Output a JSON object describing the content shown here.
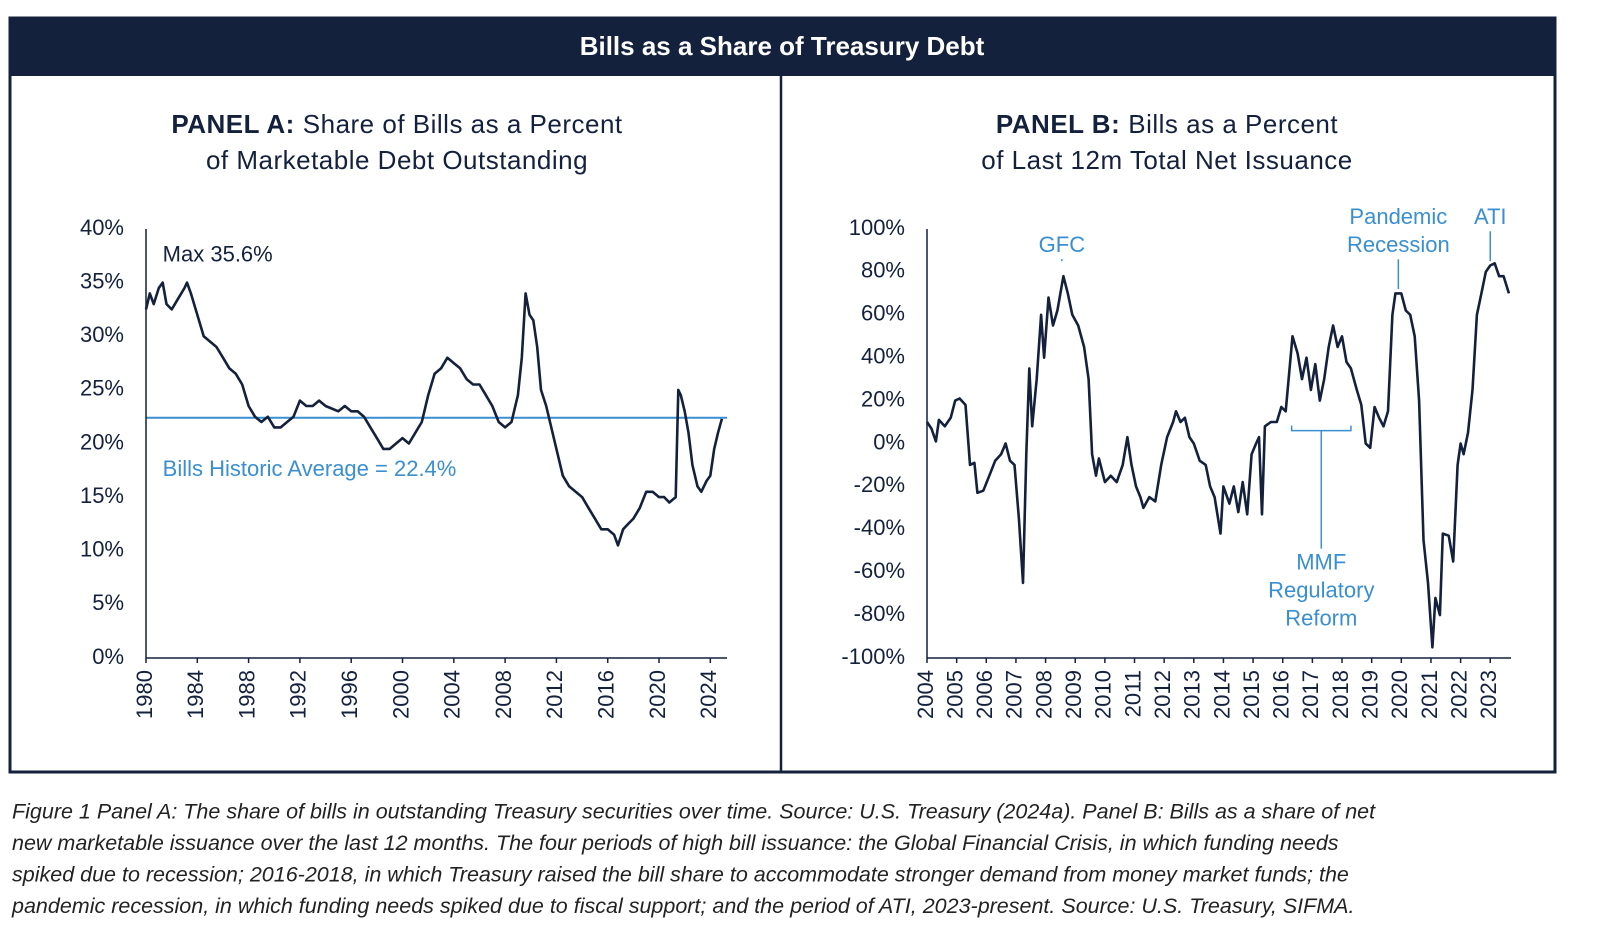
{
  "header": {
    "title": "Bills as a Share of Treasury Debt"
  },
  "caption": [
    "Figure 1 Panel A: The share of bills in outstanding Treasury securities over time. Source: U.S. Treasury (2024a). Panel B: Bills as a share of net",
    "new marketable issuance over the last 12 months. The four periods of high bill issuance: the Global Financial Crisis, in which funding needs",
    "spiked due to recession; 2016-2018, in which Treasury raised the bill share to accommodate stronger demand from money market funds; the",
    "pandemic recession, in which funding needs spiked due to fiscal support; and the period of ATI, 2023-present. Source: U.S. Treasury, SIFMA."
  ],
  "chart_data": [
    {
      "type": "line",
      "panel": "PANEL A:",
      "title": [
        "Share of Bills as a Percent",
        "of Marketable Debt Outstanding"
      ],
      "color": "#14213d",
      "x": [
        1980,
        1980.3,
        1980.6,
        1981,
        1981.3,
        1981.6,
        1982,
        1982.5,
        1983,
        1983.2,
        1983.5,
        1984,
        1984.5,
        1985,
        1985.5,
        1986,
        1986.5,
        1987,
        1987.5,
        1988,
        1988.5,
        1989,
        1989.5,
        1990,
        1990.5,
        1991,
        1991.5,
        1992,
        1992.5,
        1993,
        1993.5,
        1994,
        1995,
        1995.5,
        1996,
        1996.5,
        1997,
        1997.5,
        1998,
        1998.5,
        1999,
        1999.5,
        2000,
        2000.5,
        2001,
        2001.5,
        2002,
        2002.5,
        2003,
        2003.5,
        2004,
        2004.5,
        2005,
        2005.5,
        2006,
        2006.5,
        2007,
        2007.5,
        2008,
        2008.5,
        2009,
        2009.3,
        2009.6,
        2009.9,
        2010.2,
        2010.5,
        2010.8,
        2011.2,
        2011.5,
        2012,
        2012.5,
        2013,
        2013.5,
        2014,
        2014.5,
        2015,
        2015.5,
        2016,
        2016.5,
        2016.8,
        2017.2,
        2017.6,
        2018,
        2018.5,
        2019,
        2019.5,
        2020,
        2020.4,
        2020.8,
        2021.3,
        2021.5,
        2021.7,
        2022,
        2022.3,
        2022.6,
        2023,
        2023.3,
        2023.7,
        2024,
        2024.3,
        2024.6,
        2024.9
      ],
      "values": [
        32.5,
        34,
        33,
        34.5,
        35,
        33,
        32.5,
        33.5,
        34.5,
        35,
        34,
        32,
        30,
        29.5,
        29,
        28,
        27,
        26.5,
        25.5,
        23.5,
        22.5,
        22,
        22.5,
        21.5,
        21.5,
        22,
        22.5,
        24,
        23.5,
        23.5,
        24,
        23.5,
        23,
        23.5,
        23,
        23,
        22.5,
        21.5,
        20.5,
        19.5,
        19.5,
        20,
        20.5,
        20,
        21,
        22,
        24.5,
        26.5,
        27,
        28,
        27.5,
        27,
        26,
        25.5,
        25.5,
        24.5,
        23.5,
        22,
        21.5,
        22,
        24.5,
        28,
        34,
        32,
        31.5,
        29,
        25,
        23.5,
        22,
        19.5,
        17,
        16,
        15.5,
        15,
        14,
        13,
        12,
        12,
        11.5,
        10.5,
        12,
        12.5,
        13,
        14,
        15.5,
        15.5,
        15,
        15,
        14.5,
        15,
        25,
        24.5,
        23,
        21,
        18,
        16,
        15.5,
        16.5,
        17,
        19.5,
        21,
        22.3
      ],
      "xlim": [
        1980,
        2025.3
      ],
      "xticks": [
        1980,
        1984,
        1988,
        1992,
        1996,
        2000,
        2004,
        2008,
        2012,
        2016,
        2020,
        2024
      ],
      "ylim": [
        0,
        40
      ],
      "yticks": [
        {
          "value": 0,
          "label": "0%"
        },
        {
          "value": 5,
          "label": "5%"
        },
        {
          "value": 10,
          "label": "10%"
        },
        {
          "value": 15,
          "label": "15%"
        },
        {
          "value": 20,
          "label": "20%"
        },
        {
          "value": 25,
          "label": "25%"
        },
        {
          "value": 30,
          "label": "30%"
        },
        {
          "value": 35,
          "label": "35%"
        },
        {
          "value": 40,
          "label": "40%"
        }
      ],
      "hline": {
        "value": 22.4,
        "color": "#3a8fd0"
      },
      "annotations": [
        {
          "text": [
            "Max 35.6%"
          ],
          "x": 1981.3,
          "y": 37.5,
          "align": "start",
          "color": "#14213d"
        },
        {
          "text": [
            "Bills Historic Average = 22.4%"
          ],
          "x": 1981.3,
          "y": 17.5,
          "align": "start",
          "color": "#3a8fd0"
        }
      ]
    },
    {
      "type": "line",
      "panel": "PANEL B:",
      "title": [
        "Bills as a Percent",
        "of Last 12m Total Net Issuance"
      ],
      "color": "#14213d",
      "x": [
        2004,
        2004.15,
        2004.3,
        2004.4,
        2004.6,
        2004.8,
        2004.95,
        2005.1,
        2005.3,
        2005.45,
        2005.6,
        2005.7,
        2005.9,
        2006.1,
        2006.3,
        2006.5,
        2006.65,
        2006.8,
        2006.95,
        2007.1,
        2007.24,
        2007.35,
        2007.45,
        2007.55,
        2007.7,
        2007.85,
        2007.95,
        2008.1,
        2008.25,
        2008.4,
        2008.6,
        2008.75,
        2008.9,
        2009.1,
        2009.3,
        2009.45,
        2009.57,
        2009.7,
        2009.8,
        2010,
        2010.2,
        2010.4,
        2010.6,
        2010.76,
        2010.9,
        2011.05,
        2011.2,
        2011.3,
        2011.5,
        2011.7,
        2011.9,
        2012.1,
        2012.3,
        2012.4,
        2012.55,
        2012.7,
        2012.85,
        2013,
        2013.2,
        2013.4,
        2013.55,
        2013.7,
        2013.9,
        2014,
        2014.2,
        2014.35,
        2014.5,
        2014.65,
        2014.8,
        2014.95,
        2015.1,
        2015.2,
        2015.3,
        2015.4,
        2015.6,
        2015.8,
        2015.95,
        2016.1,
        2016.33,
        2016.5,
        2016.65,
        2016.8,
        2016.95,
        2017.1,
        2017.25,
        2017.4,
        2017.55,
        2017.7,
        2017.85,
        2018,
        2018.15,
        2018.3,
        2018.5,
        2018.65,
        2018.8,
        2018.95,
        2019.1,
        2019.25,
        2019.4,
        2019.55,
        2019.7,
        2019.8,
        2020,
        2020.15,
        2020.3,
        2020.45,
        2020.6,
        2020.75,
        2020.9,
        2021.05,
        2021.15,
        2021.3,
        2021.4,
        2021.6,
        2021.75,
        2021.9,
        2022,
        2022.1,
        2022.25,
        2022.4,
        2022.55,
        2022.7,
        2022.85,
        2023,
        2023.15,
        2023.3,
        2023.45,
        2023.63
      ],
      "values": [
        10,
        7,
        1,
        11,
        8,
        12,
        20,
        21,
        18,
        -10,
        -9,
        -23,
        -22,
        -15,
        -8,
        -5,
        0,
        -8,
        -10,
        -35,
        -65,
        -5,
        35,
        8,
        30,
        60,
        40,
        68,
        55,
        62,
        78,
        70,
        60,
        55,
        45,
        30,
        -5,
        -15,
        -7,
        -18,
        -15,
        -18,
        -10,
        3,
        -10,
        -20,
        -25,
        -30,
        -25,
        -27,
        -10,
        3,
        10,
        15,
        10,
        12,
        3,
        0,
        -8,
        -10,
        -20,
        -25,
        -42,
        -20,
        -28,
        -20,
        -32,
        -18,
        -33,
        -5,
        0,
        3,
        -33,
        8,
        10,
        10,
        17,
        15,
        50,
        42,
        30,
        40,
        25,
        37,
        20,
        30,
        45,
        55,
        45,
        50,
        38,
        35,
        25,
        18,
        0,
        -2,
        17,
        12,
        8,
        15,
        60,
        70,
        70,
        62,
        60,
        50,
        20,
        -45,
        -65,
        -95,
        -72,
        -80,
        -42,
        -43,
        -55,
        -10,
        0,
        -5,
        5,
        25,
        60,
        70,
        80,
        83,
        84,
        78,
        78,
        70
      ],
      "xlim": [
        2004,
        2023.7
      ],
      "xticks": [
        2004,
        2005,
        2006,
        2007,
        2008,
        2009,
        2010,
        2011,
        2012,
        2013,
        2014,
        2015,
        2016,
        2017,
        2018,
        2019,
        2020,
        2021,
        2022,
        2023
      ],
      "ylim": [
        -100,
        100
      ],
      "yticks": [
        {
          "value": -100,
          "label": "-100%"
        },
        {
          "value": -80,
          "label": "-80%"
        },
        {
          "value": -60,
          "label": "-60%"
        },
        {
          "value": -40,
          "label": "-40%"
        },
        {
          "value": -20,
          "label": "-20%"
        },
        {
          "value": 0,
          "label": "0%"
        },
        {
          "value": 20,
          "label": "20%"
        },
        {
          "value": 40,
          "label": "40%"
        },
        {
          "value": 60,
          "label": "60%"
        },
        {
          "value": 80,
          "label": "80%"
        },
        {
          "value": 100,
          "label": "100%"
        }
      ],
      "annotations": [
        {
          "text": [
            "GFC"
          ],
          "x": 2008.55,
          "y": 92,
          "target_y": 85,
          "align": "middle",
          "color": "#3a8fd0"
        },
        {
          "text": [
            "Pandemic",
            "Recession"
          ],
          "x": 2019.9,
          "y": 105,
          "target_y": 72,
          "align": "middle",
          "color": "#3a8fd0"
        },
        {
          "text": [
            "ATI"
          ],
          "x": 2023,
          "y": 105,
          "target_y": 85,
          "align": "middle",
          "color": "#3a8fd0"
        },
        {
          "text": [
            "MMF",
            "Regulatory",
            "Reform"
          ],
          "x": 2017.3,
          "y": -56,
          "bracket": [
            2016.3,
            2018.3
          ],
          "bracket_y": 6,
          "align": "middle",
          "color": "#3a8fd0"
        }
      ]
    }
  ]
}
